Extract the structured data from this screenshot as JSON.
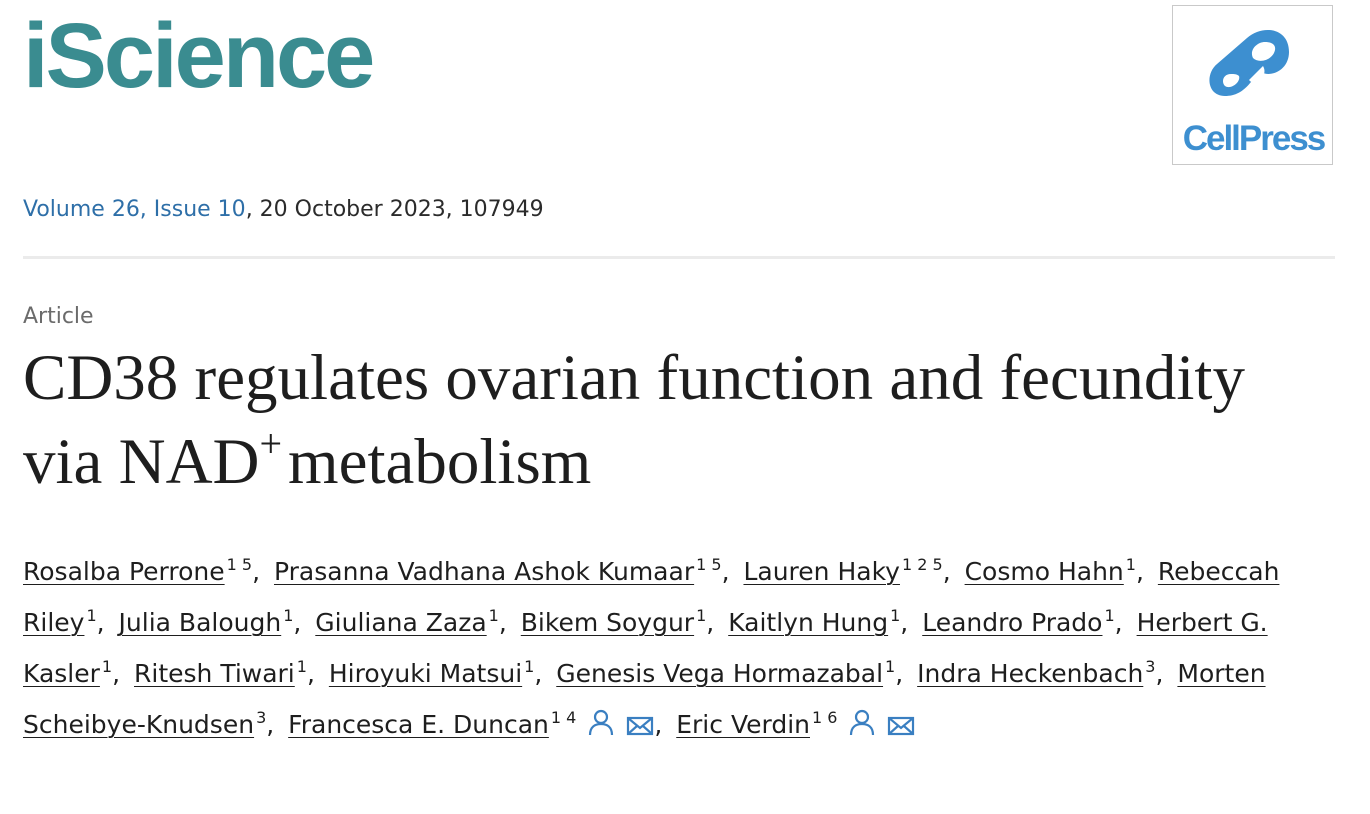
{
  "header": {
    "journal_name": "iScience",
    "publisher_name": "CellPress",
    "brand_colors": {
      "journal": "#3a8c90",
      "publisher": "#3d8fd0",
      "link": "#2e6fa8"
    }
  },
  "issue": {
    "volume_issue_link": "Volume 26, Issue 10",
    "date_and_number": ", 20 October 2023, 107949"
  },
  "article": {
    "type": "Article",
    "title_part1": "CD38 regulates ovarian function and fecundity via NAD",
    "title_superscript": "+",
    "title_part2": "metabolism"
  },
  "authors": [
    {
      "name": "Rosalba Perrone",
      "affiliations": "1 5",
      "sep": ","
    },
    {
      "name": "Prasanna Vadhana Ashok Kumaar",
      "affiliations": "1 5",
      "sep": ","
    },
    {
      "name": "Lauren Haky",
      "affiliations": "1 2 5",
      "sep": ","
    },
    {
      "name": "Cosmo Hahn",
      "affiliations": "1",
      "sep": ","
    },
    {
      "name": "Rebeccah Riley",
      "affiliations": "1",
      "sep": ","
    },
    {
      "name": "Julia Balough",
      "affiliations": "1",
      "sep": ","
    },
    {
      "name": "Giuliana Zaza",
      "affiliations": "1",
      "sep": ","
    },
    {
      "name": "Bikem Soygur",
      "affiliations": "1",
      "sep": ","
    },
    {
      "name": "Kaitlyn Hung",
      "affiliations": "1",
      "sep": ","
    },
    {
      "name": "Leandro Prado",
      "affiliations": "1",
      "sep": ","
    },
    {
      "name": "Herbert G. Kasler",
      "affiliations": "1",
      "sep": ","
    },
    {
      "name": "Ritesh Tiwari",
      "affiliations": "1",
      "sep": ","
    },
    {
      "name": "Hiroyuki Matsui",
      "affiliations": "1",
      "sep": ","
    },
    {
      "name": "Genesis Vega Hormazabal",
      "affiliations": "1",
      "sep": ","
    },
    {
      "name": "Indra Heckenbach",
      "affiliations": "3",
      "sep": ","
    },
    {
      "name": "Morten Scheibye-Knudsen",
      "affiliations": "3",
      "sep": ","
    },
    {
      "name": "Francesca E. Duncan",
      "affiliations": "1 4",
      "sep": ",",
      "corresponding": true
    },
    {
      "name": "Eric Verdin",
      "affiliations": "1 6",
      "sep": "",
      "corresponding": true
    }
  ],
  "icons": {
    "person": "person-icon",
    "email": "envelope-icon"
  }
}
